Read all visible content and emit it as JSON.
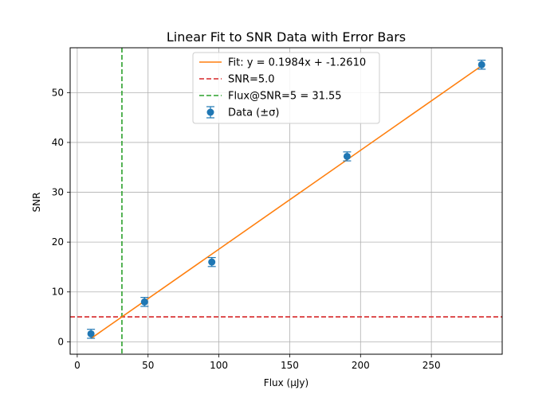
{
  "chart_data": {
    "type": "scatter",
    "title": "Linear Fit to SNR Data with Error Bars",
    "xlabel": "Flux (μJy)",
    "ylabel": "SNR",
    "xlim": [
      -5,
      300
    ],
    "ylim": [
      -2.5,
      59
    ],
    "x_ticks": [
      0,
      50,
      100,
      150,
      200,
      250
    ],
    "y_ticks": [
      0,
      10,
      20,
      30,
      40,
      50
    ],
    "grid": true,
    "legend_position": "top-center",
    "series": [
      {
        "name": "Data (±σ)",
        "kind": "errorbar",
        "color": "#1f77b4",
        "x": [
          9.7,
          47.5,
          95.0,
          190.5,
          285.5
        ],
        "y": [
          1.6,
          8.0,
          16.0,
          37.2,
          55.6
        ],
        "yerr": [
          0.9,
          0.9,
          0.9,
          0.9,
          0.9
        ]
      },
      {
        "name": "Fit: y = 0.1984x + -1.2610",
        "kind": "line",
        "color": "#ff7f0e",
        "slope": 0.1984,
        "intercept": -1.261,
        "x_range": [
          9.7,
          285.5
        ]
      },
      {
        "name": "SNR=5.0",
        "kind": "hline",
        "color": "#d62728",
        "y": 5.0
      },
      {
        "name": "Flux@SNR=5 = 31.55",
        "kind": "vline",
        "color": "#2ca02c",
        "x": 31.55
      }
    ]
  }
}
